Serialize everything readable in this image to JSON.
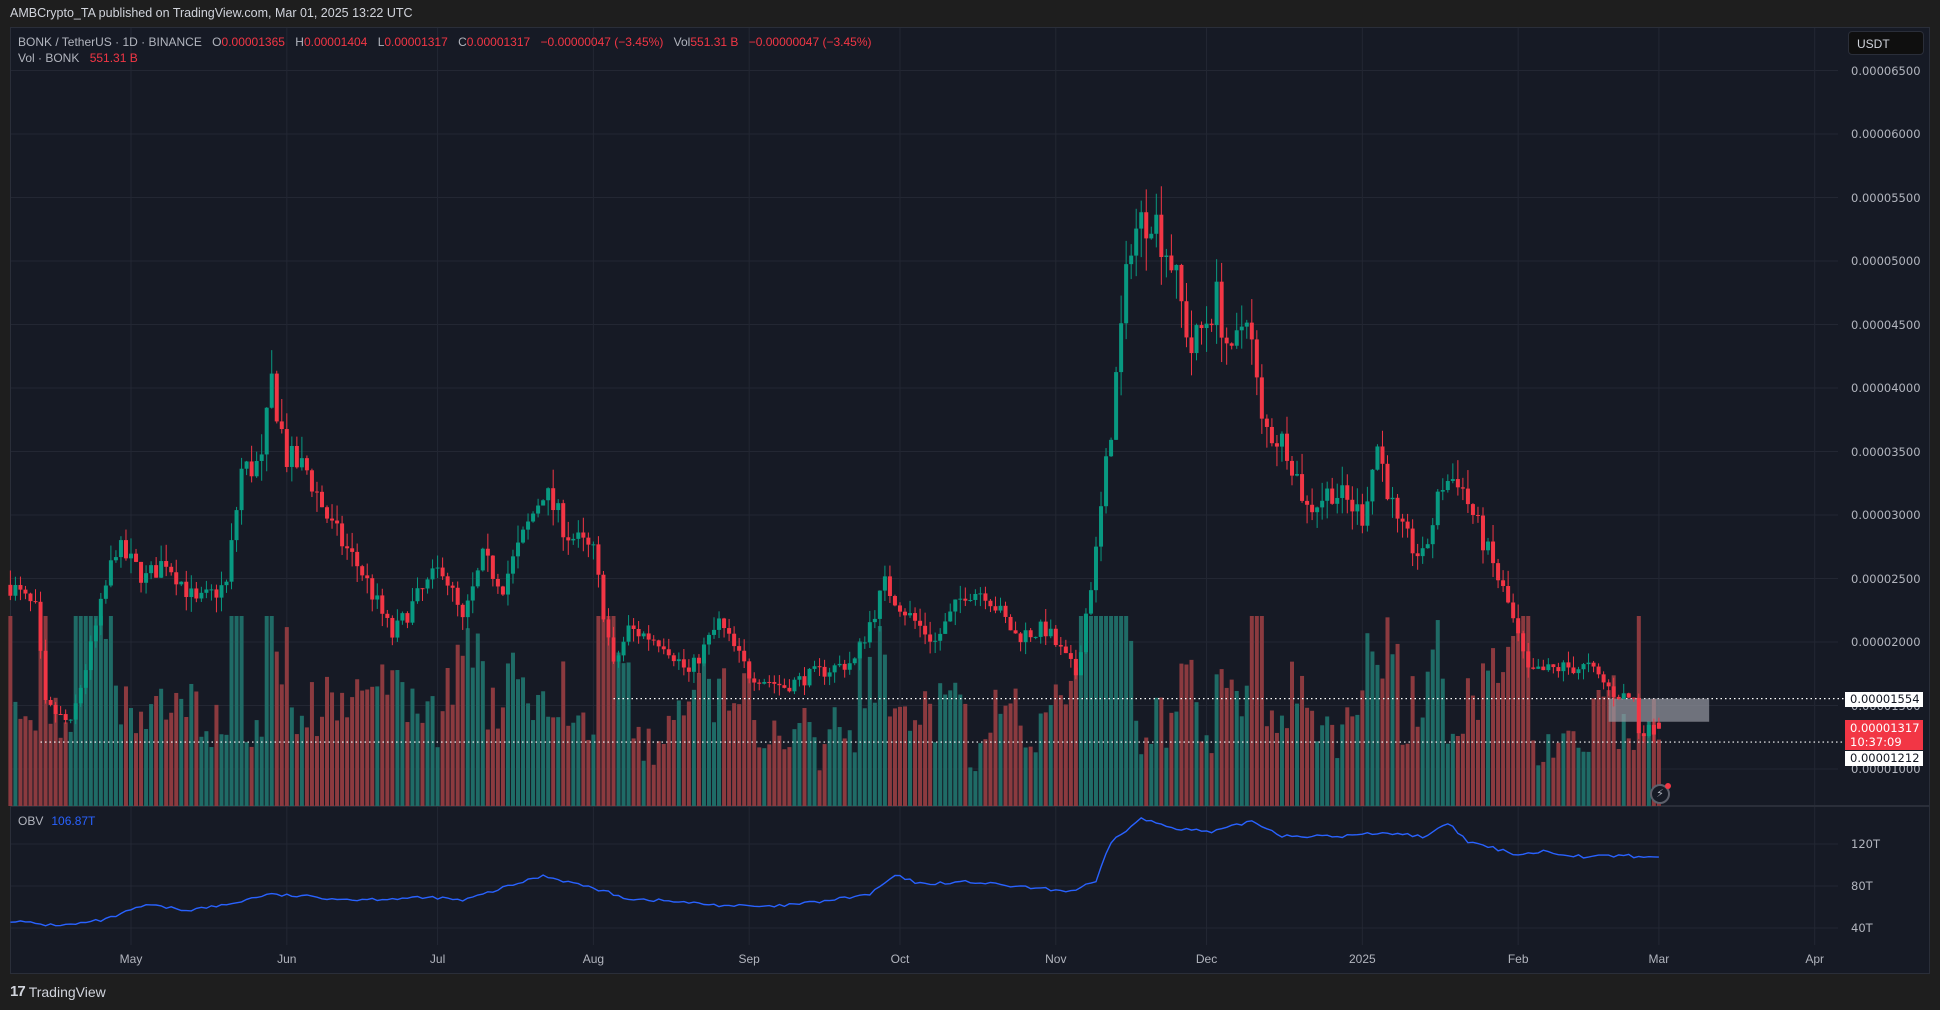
{
  "publisher": "AMBCrypto_TA published on TradingView.com, Mar 01, 2025 13:22 UTC",
  "legend": {
    "symbol": "BONK / TetherUS · 1D · BINANCE",
    "open_label": "O",
    "open": "0.00001365",
    "high_label": "H",
    "high": "0.00001404",
    "low_label": "L",
    "low": "0.00001317",
    "close_label": "C",
    "close": "0.00001317",
    "change": "−0.00000047 (−3.45%)",
    "vol_label": "Vol",
    "vol": "551.31 B",
    "vol_change": "−0.00000047 (−3.45%)",
    "vol_indicator": "Vol · BONK",
    "vol_indicator_value": "551.31 B"
  },
  "obv": {
    "label": "OBV",
    "value": "106.87T",
    "color": "#2962ff"
  },
  "currency_button": "USDT",
  "price_axis": [
    "0.00006500",
    "0.00006000",
    "0.00005500",
    "0.00005000",
    "0.00004500",
    "0.00004000",
    "0.00003500",
    "0.00003000",
    "0.00002500",
    "0.00002000",
    "0.00001500",
    "0.00001000"
  ],
  "obv_axis": [
    "120T",
    "80T",
    "40T"
  ],
  "price_tags": {
    "resistance": "0.00001554",
    "last_price": "0.00001317",
    "countdown": "10:37:09",
    "support": "0.00001212"
  },
  "time_axis": [
    "May",
    "Jun",
    "Jul",
    "Aug",
    "Sep",
    "Oct",
    "Nov",
    "Dec",
    "2025",
    "Feb",
    "Mar",
    "Apr"
  ],
  "footer": {
    "logo_text": "TradingView"
  },
  "colors": {
    "up": "#089981",
    "down": "#f23645",
    "vol_up": "#1f6b66",
    "vol_down": "#8b3a3f",
    "obv": "#2962ff",
    "background": "#161a25",
    "grid": "#232733"
  },
  "chart_data": {
    "type": "candlestick",
    "title": "BONK / TetherUS · 1D · BINANCE",
    "xlabel": "",
    "ylabel": "USDT",
    "ylim": [
      7.5e-06,
      6.65e-05
    ],
    "x_range": [
      "2024-04-07",
      "2025-04-10"
    ],
    "grid": true,
    "price_waypoints": [
      [
        "2024-04-07",
        2.45e-05
      ],
      [
        "2024-04-12",
        2.25e-05
      ],
      [
        "2024-04-14",
        1.5e-05
      ],
      [
        "2024-04-19",
        1.35e-05
      ],
      [
        "2024-04-23",
        1.95e-05
      ],
      [
        "2024-04-28",
        2.75e-05
      ],
      [
        "2024-05-04",
        2.5e-05
      ],
      [
        "2024-05-08",
        2.65e-05
      ],
      [
        "2024-05-14",
        2.3e-05
      ],
      [
        "2024-05-20",
        2.45e-05
      ],
      [
        "2024-05-23",
        3.35e-05
      ],
      [
        "2024-05-27",
        3.4e-05
      ],
      [
        "2024-05-29",
        4.05e-05
      ],
      [
        "2024-06-01",
        3.45e-05
      ],
      [
        "2024-06-05",
        3.35e-05
      ],
      [
        "2024-06-10",
        2.9e-05
      ],
      [
        "2024-06-16",
        2.55e-05
      ],
      [
        "2024-06-22",
        2.05e-05
      ],
      [
        "2024-06-27",
        2.35e-05
      ],
      [
        "2024-07-02",
        2.6e-05
      ],
      [
        "2024-07-06",
        2.15e-05
      ],
      [
        "2024-07-10",
        2.65e-05
      ],
      [
        "2024-07-14",
        2.45e-05
      ],
      [
        "2024-07-22",
        3.2e-05
      ],
      [
        "2024-07-27",
        2.85e-05
      ],
      [
        "2024-08-01",
        2.7e-05
      ],
      [
        "2024-08-05",
        1.8e-05
      ],
      [
        "2024-08-08",
        2.1e-05
      ],
      [
        "2024-08-15",
        2e-05
      ],
      [
        "2024-08-20",
        1.75e-05
      ],
      [
        "2024-08-26",
        2.15e-05
      ],
      [
        "2024-09-01",
        1.75e-05
      ],
      [
        "2024-09-08",
        1.65e-05
      ],
      [
        "2024-09-14",
        1.75e-05
      ],
      [
        "2024-09-22",
        1.85e-05
      ],
      [
        "2024-09-28",
        2.45e-05
      ],
      [
        "2024-10-03",
        2.2e-05
      ],
      [
        "2024-10-08",
        2e-05
      ],
      [
        "2024-10-14",
        2.4e-05
      ],
      [
        "2024-10-18",
        2.4e-05
      ],
      [
        "2024-10-24",
        2.05e-05
      ],
      [
        "2024-10-30",
        2.1e-05
      ],
      [
        "2024-11-05",
        1.75e-05
      ],
      [
        "2024-11-09",
        2.7e-05
      ],
      [
        "2024-11-12",
        3.7e-05
      ],
      [
        "2024-11-16",
        5.2e-05
      ],
      [
        "2024-11-20",
        5.4e-05
      ],
      [
        "2024-11-24",
        5e-05
      ],
      [
        "2024-11-28",
        4.3e-05
      ],
      [
        "2024-12-03",
        4.7e-05
      ],
      [
        "2024-12-06",
        4.2e-05
      ],
      [
        "2024-12-09",
        4.65e-05
      ],
      [
        "2024-12-12",
        3.7e-05
      ],
      [
        "2024-12-17",
        3.55e-05
      ],
      [
        "2024-12-21",
        3.05e-05
      ],
      [
        "2024-12-26",
        3.2e-05
      ],
      [
        "2025-01-01",
        3e-05
      ],
      [
        "2025-01-04",
        3.55e-05
      ],
      [
        "2025-01-08",
        2.9e-05
      ],
      [
        "2025-01-13",
        2.65e-05
      ],
      [
        "2025-01-17",
        3.25e-05
      ],
      [
        "2025-01-20",
        3.3e-05
      ],
      [
        "2025-01-24",
        2.9e-05
      ],
      [
        "2025-01-30",
        2.3e-05
      ],
      [
        "2025-02-03",
        1.75e-05
      ],
      [
        "2025-02-10",
        1.8e-05
      ],
      [
        "2025-02-15",
        1.8e-05
      ],
      [
        "2025-02-20",
        1.6e-05
      ],
      [
        "2025-02-24",
        1.55e-05
      ],
      [
        "2025-02-25",
        1.3e-05
      ],
      [
        "2025-03-01",
        1.317e-05
      ]
    ],
    "current_candle": {
      "date": "2025-03-01",
      "open": 1.365e-05,
      "high": 1.404e-05,
      "low": 1.317e-05,
      "close": 1.317e-05,
      "volume": "551.31B"
    },
    "horizontal_lines": [
      {
        "price": 1.554e-05,
        "from": "2024-08-05",
        "style": "dotted"
      },
      {
        "price": 1.212e-05,
        "from": "2024-04-13",
        "style": "dotted"
      }
    ],
    "zone": {
      "from": "2025-02-19",
      "to": "2025-03-11",
      "top": 1.554e-05,
      "bottom": 1.372e-05,
      "color": "#9598a1"
    },
    "obv_series": {
      "name": "OBV",
      "unit": "T",
      "waypoints": [
        [
          "2024-04-07",
          47
        ],
        [
          "2024-04-14",
          43
        ],
        [
          "2024-04-19",
          43
        ],
        [
          "2024-04-26",
          48
        ],
        [
          "2024-05-04",
          62
        ],
        [
          "2024-05-12",
          57
        ],
        [
          "2024-05-20",
          62
        ],
        [
          "2024-05-28",
          72
        ],
        [
          "2024-06-05",
          70
        ],
        [
          "2024-06-14",
          67
        ],
        [
          "2024-06-22",
          68
        ],
        [
          "2024-07-01",
          69
        ],
        [
          "2024-07-06",
          66
        ],
        [
          "2024-07-12",
          75
        ],
        [
          "2024-07-22",
          90
        ],
        [
          "2024-08-01",
          78
        ],
        [
          "2024-08-08",
          68
        ],
        [
          "2024-08-15",
          66
        ],
        [
          "2024-08-25",
          62
        ],
        [
          "2024-09-05",
          60
        ],
        [
          "2024-09-15",
          65
        ],
        [
          "2024-09-25",
          72
        ],
        [
          "2024-09-30",
          90
        ],
        [
          "2024-10-05",
          82
        ],
        [
          "2024-10-15",
          84
        ],
        [
          "2024-10-25",
          79
        ],
        [
          "2024-11-04",
          75
        ],
        [
          "2024-11-09",
          84
        ],
        [
          "2024-11-12",
          122
        ],
        [
          "2024-11-18",
          144
        ],
        [
          "2024-11-24",
          136
        ],
        [
          "2024-12-02",
          131
        ],
        [
          "2024-12-10",
          142
        ],
        [
          "2024-12-16",
          128
        ],
        [
          "2024-12-27",
          127
        ],
        [
          "2025-01-05",
          131
        ],
        [
          "2025-01-14",
          127
        ],
        [
          "2025-01-18",
          140
        ],
        [
          "2025-01-22",
          122
        ],
        [
          "2025-02-01",
          110
        ],
        [
          "2025-02-06",
          113
        ],
        [
          "2025-02-14",
          108
        ],
        [
          "2025-02-22",
          109
        ],
        [
          "2025-03-01",
          106.87
        ]
      ],
      "ylim": [
        15,
        155
      ]
    }
  }
}
